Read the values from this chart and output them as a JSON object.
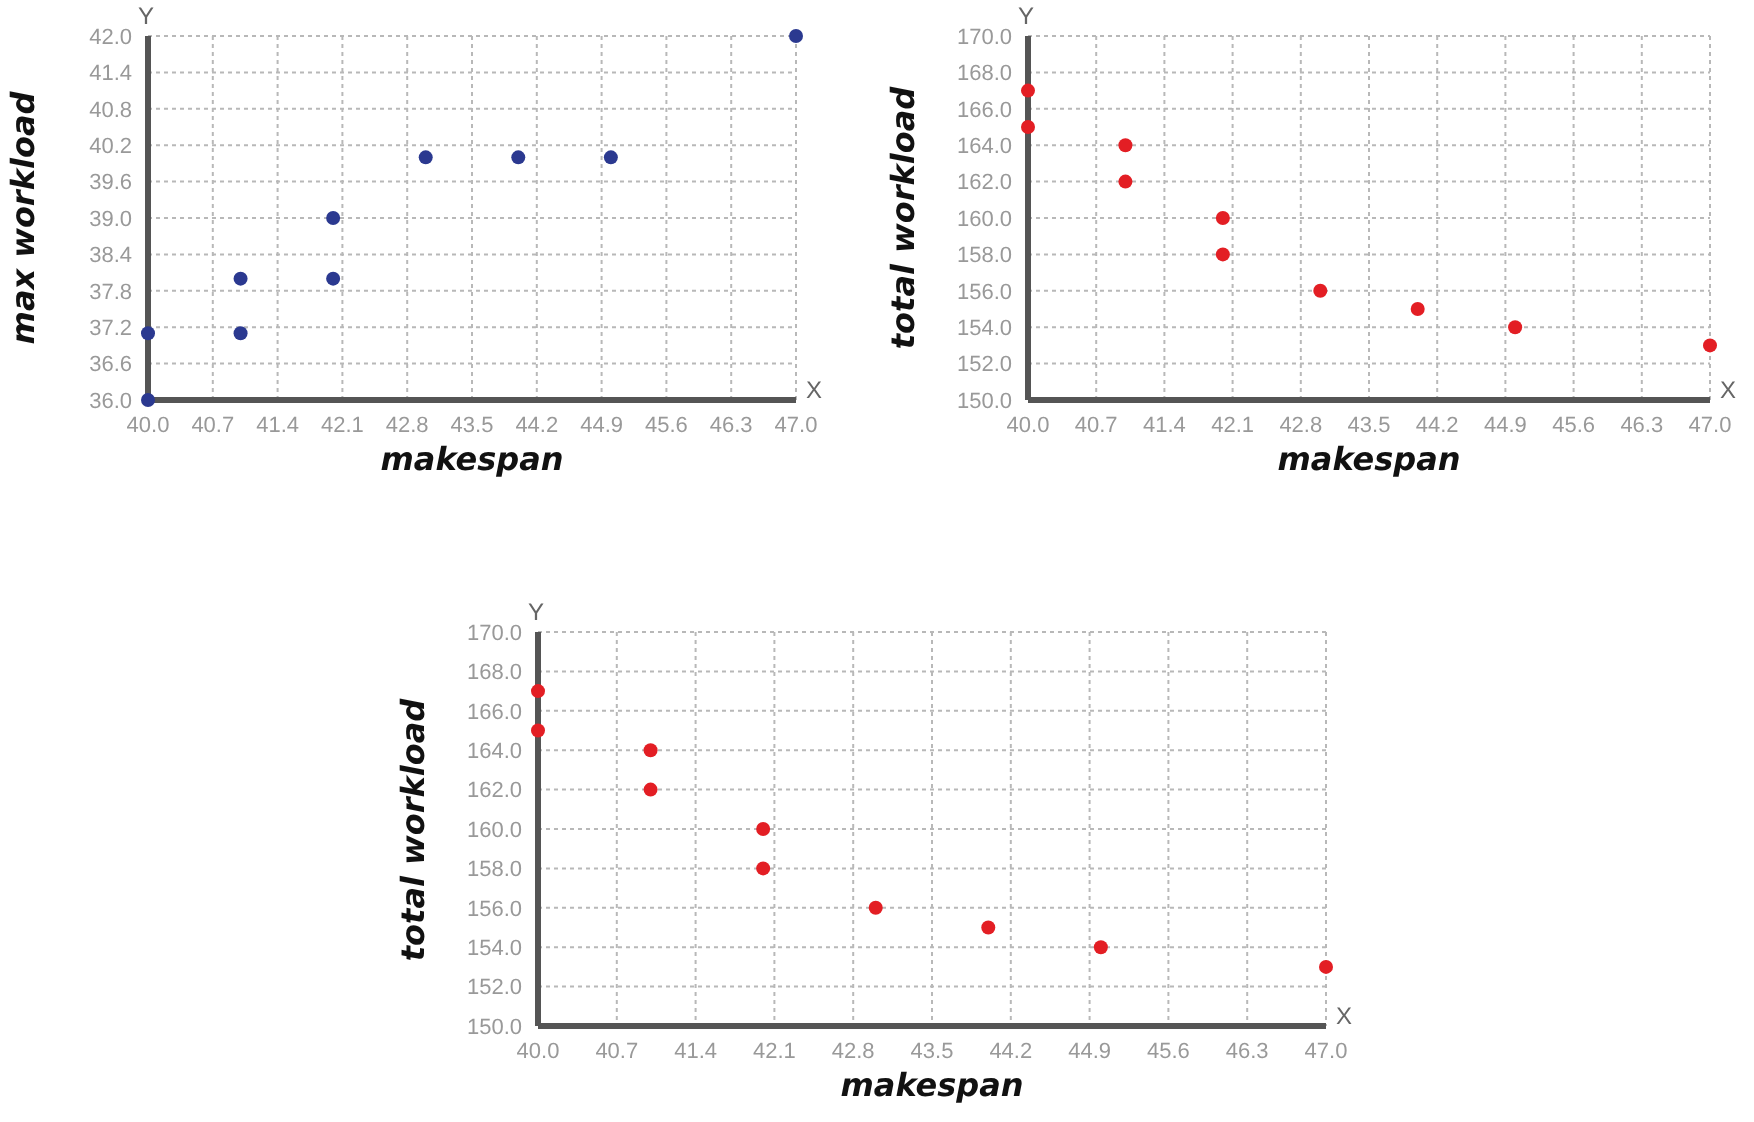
{
  "chart_data": [
    {
      "type": "scatter",
      "xlabel": "makespan",
      "ylabel": "max workload",
      "annotations": [
        "Y",
        "X"
      ],
      "grid": true,
      "marker": "circle",
      "xlim": [
        40.0,
        47.0
      ],
      "xticks": [
        {
          "value": 40.0,
          "label": "40.0"
        },
        {
          "value": 40.7,
          "label": "40.7"
        },
        {
          "value": 41.4,
          "label": "41.4"
        },
        {
          "value": 42.1,
          "label": "42.1"
        },
        {
          "value": 42.8,
          "label": "42.8"
        },
        {
          "value": 43.5,
          "label": "43.5"
        },
        {
          "value": 44.2,
          "label": "44.2"
        },
        {
          "value": 44.9,
          "label": "44.9"
        },
        {
          "value": 45.6,
          "label": "45.6"
        },
        {
          "value": 46.3,
          "label": "46.3"
        },
        {
          "value": 47.0,
          "label": "47.0"
        }
      ],
      "ylim": [
        36.0,
        42.0
      ],
      "yticks": [
        {
          "value": 36.0,
          "label": "36.0"
        },
        {
          "value": 36.6,
          "label": "36.6"
        },
        {
          "value": 37.2,
          "label": "37.2"
        },
        {
          "value": 37.8,
          "label": "37.8"
        },
        {
          "value": 38.4,
          "label": "38.4"
        },
        {
          "value": 39.0,
          "label": "39.0"
        },
        {
          "value": 39.6,
          "label": "39.6"
        },
        {
          "value": 40.2,
          "label": "40.2"
        },
        {
          "value": 40.8,
          "label": "40.8"
        },
        {
          "value": 41.4,
          "label": "41.4"
        },
        {
          "value": 42.0,
          "label": "42.0"
        }
      ],
      "series": [
        {
          "color": "#2b3990",
          "x": [
            40,
            40,
            41,
            41,
            42,
            42,
            43,
            44,
            45,
            47
          ],
          "values": [
            36.0,
            37.1,
            37.1,
            38.0,
            38.0,
            39.0,
            40.0,
            40.0,
            40.0,
            42.0
          ]
        }
      ]
    },
    {
      "type": "scatter",
      "xlabel": "makespan",
      "ylabel": "total workload",
      "annotations": [
        "Y",
        "X"
      ],
      "grid": true,
      "marker": "circle",
      "xlim": [
        40.0,
        47.0
      ],
      "xticks": [
        {
          "value": 40.0,
          "label": "40.0"
        },
        {
          "value": 40.7,
          "label": "40.7"
        },
        {
          "value": 41.4,
          "label": "41.4"
        },
        {
          "value": 42.1,
          "label": "42.1"
        },
        {
          "value": 42.8,
          "label": "42.8"
        },
        {
          "value": 43.5,
          "label": "43.5"
        },
        {
          "value": 44.2,
          "label": "44.2"
        },
        {
          "value": 44.9,
          "label": "44.9"
        },
        {
          "value": 45.6,
          "label": "45.6"
        },
        {
          "value": 46.3,
          "label": "46.3"
        },
        {
          "value": 47.0,
          "label": "47.0"
        }
      ],
      "ylim": [
        150.0,
        170.0
      ],
      "yticks": [
        {
          "value": 150,
          "label": "150.0"
        },
        {
          "value": 152,
          "label": "152.0"
        },
        {
          "value": 154,
          "label": "154.0"
        },
        {
          "value": 156,
          "label": "156.0"
        },
        {
          "value": 158,
          "label": "158.0"
        },
        {
          "value": 160,
          "label": "160.0"
        },
        {
          "value": 162,
          "label": "162.0"
        },
        {
          "value": 164,
          "label": "164.0"
        },
        {
          "value": 166,
          "label": "166.0"
        },
        {
          "value": 168,
          "label": "168.0"
        },
        {
          "value": 170,
          "label": "170.0"
        }
      ],
      "series": [
        {
          "color": "#e31e24",
          "x": [
            40,
            40,
            41,
            41,
            42,
            42,
            43,
            44,
            45,
            47
          ],
          "values": [
            167,
            165,
            164,
            162,
            160,
            158,
            156,
            155,
            154,
            153
          ]
        }
      ]
    },
    {
      "type": "scatter",
      "xlabel": "makespan",
      "ylabel": "total workload",
      "annotations": [
        "Y",
        "X"
      ],
      "grid": true,
      "marker": "circle",
      "xlim": [
        40.0,
        47.0
      ],
      "xticks": [
        {
          "value": 40.0,
          "label": "40.0"
        },
        {
          "value": 40.7,
          "label": "40.7"
        },
        {
          "value": 41.4,
          "label": "41.4"
        },
        {
          "value": 42.1,
          "label": "42.1"
        },
        {
          "value": 42.8,
          "label": "42.8"
        },
        {
          "value": 43.5,
          "label": "43.5"
        },
        {
          "value": 44.2,
          "label": "44.2"
        },
        {
          "value": 44.9,
          "label": "44.9"
        },
        {
          "value": 45.6,
          "label": "45.6"
        },
        {
          "value": 46.3,
          "label": "46.3"
        },
        {
          "value": 47.0,
          "label": "47.0"
        }
      ],
      "ylim": [
        150.0,
        170.0
      ],
      "yticks": [
        {
          "value": 150,
          "label": "150.0"
        },
        {
          "value": 152,
          "label": "152.0"
        },
        {
          "value": 154,
          "label": "154.0"
        },
        {
          "value": 156,
          "label": "156.0"
        },
        {
          "value": 158,
          "label": "158.0"
        },
        {
          "value": 160,
          "label": "160.0"
        },
        {
          "value": 162,
          "label": "162.0"
        },
        {
          "value": 164,
          "label": "164.0"
        },
        {
          "value": 166,
          "label": "166.0"
        },
        {
          "value": 168,
          "label": "168.0"
        },
        {
          "value": 170,
          "label": "170.0"
        }
      ],
      "series": [
        {
          "color": "#e31e24",
          "x": [
            40,
            40,
            41,
            41,
            42,
            42,
            43,
            44,
            45,
            47
          ],
          "values": [
            167,
            165,
            164,
            162,
            160,
            158,
            156,
            155,
            154,
            153
          ]
        }
      ]
    }
  ]
}
